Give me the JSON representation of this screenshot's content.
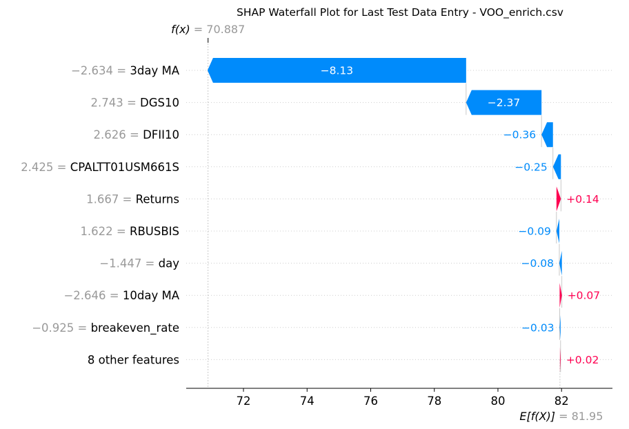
{
  "chart_data": {
    "type": "waterfall",
    "title": "SHAP Waterfall Plot for Last Test Data Entry - VOO_enrich.csv",
    "fx": {
      "label": "f(x)",
      "value": "70.887",
      "numeric": 70.887
    },
    "base": {
      "label": "E[f(X)]",
      "value": "81.95",
      "numeric": 81.95
    },
    "xlim": [
      70.2,
      83.6
    ],
    "xticks": [
      72,
      74,
      76,
      78,
      80,
      82
    ],
    "colors": {
      "positive": "#ff0051",
      "negative": "#008bfb",
      "feature_value": "#999999"
    },
    "features": [
      {
        "value": "−2.634",
        "name": "3day MA",
        "shap": -8.13,
        "label": "−8.13"
      },
      {
        "value": "2.743",
        "name": "DGS10",
        "shap": -2.37,
        "label": "−2.37"
      },
      {
        "value": "2.626",
        "name": "DFII10",
        "shap": -0.36,
        "label": "−0.36"
      },
      {
        "value": "2.425",
        "name": "CPALTT01USM661S",
        "shap": -0.25,
        "label": "−0.25"
      },
      {
        "value": "1.667",
        "name": "Returns",
        "shap": 0.14,
        "label": "+0.14"
      },
      {
        "value": "1.622",
        "name": "RBUSBIS",
        "shap": -0.09,
        "label": "−0.09"
      },
      {
        "value": "−1.447",
        "name": "day",
        "shap": -0.08,
        "label": "−0.08"
      },
      {
        "value": "−2.646",
        "name": "10day MA",
        "shap": 0.07,
        "label": "+0.07"
      },
      {
        "value": "−0.925",
        "name": "breakeven_rate",
        "shap": -0.03,
        "label": "−0.03"
      },
      {
        "value": "",
        "name": "8 other features",
        "shap": 0.02,
        "label": "+0.02"
      }
    ]
  }
}
